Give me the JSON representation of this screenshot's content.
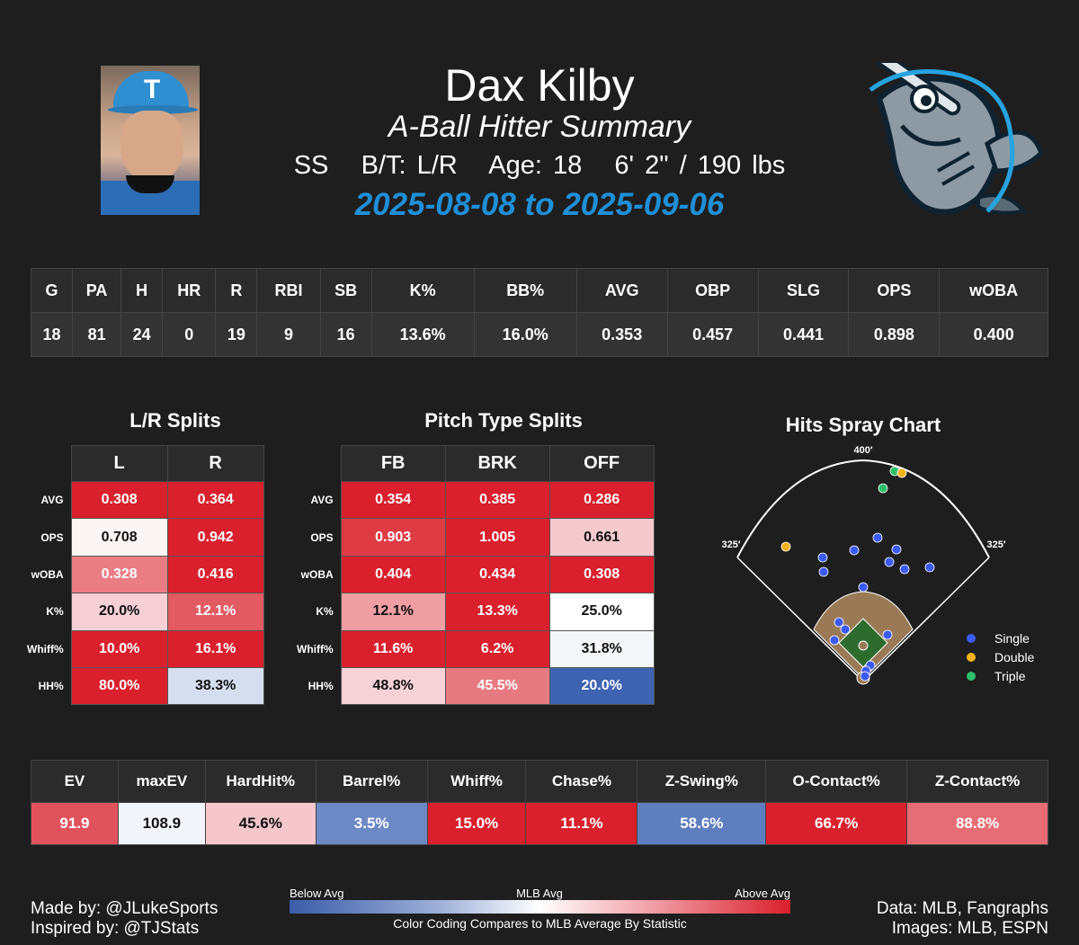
{
  "header": {
    "name": "Dax Kilby",
    "subtitle": "A-Ball Hitter Summary",
    "info": "SS   B/T: L/R   Age: 18   6' 2\" / 190 lbs",
    "dates": "2025-08-08 to 2025-09-06",
    "photo_cap_letter": "T"
  },
  "stats": {
    "headers": [
      "G",
      "PA",
      "H",
      "HR",
      "R",
      "RBI",
      "SB",
      "K%",
      "BB%",
      "AVG",
      "OBP",
      "SLG",
      "OPS",
      "wOBA"
    ],
    "values": [
      "18",
      "81",
      "24",
      "0",
      "19",
      "9",
      "16",
      "13.6%",
      "16.0%",
      "0.353",
      "0.457",
      "0.441",
      "0.898",
      "0.400"
    ]
  },
  "lr_splits": {
    "title": "L/R Splits",
    "columns": [
      "L",
      "R"
    ],
    "row_labels": [
      "AVG",
      "OPS",
      "wOBA",
      "K%",
      "Whiff%",
      "HH%"
    ],
    "rows": [
      [
        "0.308",
        "0.364"
      ],
      [
        "0.708",
        "0.942"
      ],
      [
        "0.328",
        "0.416"
      ],
      [
        "20.0%",
        "12.1%"
      ],
      [
        "10.0%",
        "16.1%"
      ],
      [
        "80.0%",
        "38.3%"
      ]
    ],
    "colors": [
      [
        "#d9202c",
        "#d9202c"
      ],
      [
        "#fcf5f5",
        "#d9202c"
      ],
      [
        "#ea7c83",
        "#d9202c"
      ],
      [
        "#f6d0d4",
        "#e25a62"
      ],
      [
        "#d9202c",
        "#d9202c"
      ],
      [
        "#d9202c",
        "#d4deee"
      ]
    ]
  },
  "pitch_splits": {
    "title": "Pitch Type Splits",
    "columns": [
      "FB",
      "BRK",
      "OFF"
    ],
    "row_labels": [
      "AVG",
      "OPS",
      "wOBA",
      "K%",
      "Whiff%",
      "HH%"
    ],
    "rows": [
      [
        "0.354",
        "0.385",
        "0.286"
      ],
      [
        "0.903",
        "1.005",
        "0.661"
      ],
      [
        "0.404",
        "0.434",
        "0.308"
      ],
      [
        "12.1%",
        "13.3%",
        "25.0%"
      ],
      [
        "11.6%",
        "6.2%",
        "31.8%"
      ],
      [
        "48.8%",
        "45.5%",
        "20.0%"
      ]
    ],
    "colors": [
      [
        "#d9202c",
        "#d9202c",
        "#d9202c"
      ],
      [
        "#de3b44",
        "#d9202c",
        "#f5cace"
      ],
      [
        "#d9202c",
        "#d9202c",
        "#d9202c"
      ],
      [
        "#ef9ea3",
        "#d9202c",
        "#ffffff"
      ],
      [
        "#d9202c",
        "#d9202c",
        "#f4f6fa"
      ],
      [
        "#f6d2d6",
        "#e77a80",
        "#3d63b2"
      ]
    ]
  },
  "spray": {
    "title": "Hits Spray Chart",
    "cf_label": "400′",
    "lf_label": "325′",
    "rf_label": "325′",
    "legend": [
      {
        "label": "Single",
        "color": "#3b5bf0"
      },
      {
        "label": "Double",
        "color": "#f5b21b"
      },
      {
        "label": "Triple",
        "color": "#2fbf6a"
      }
    ]
  },
  "advanced": {
    "headers": [
      "EV",
      "maxEV",
      "HardHit%",
      "Barrel%",
      "Whiff%",
      "Chase%",
      "Z-Swing%",
      "O-Contact%",
      "Z-Contact%"
    ],
    "values": [
      "91.9",
      "108.9",
      "45.6%",
      "3.5%",
      "15.0%",
      "11.1%",
      "58.6%",
      "66.7%",
      "88.8%"
    ],
    "colors": [
      "#e0535d",
      "#f1f4fa",
      "#f5c7cb",
      "#6c88c5",
      "#d9202c",
      "#d9202c",
      "#5e7ec0",
      "#d9202c",
      "#e66d75"
    ]
  },
  "footer": {
    "made_by": "Made by: @JLukeSports",
    "inspired_by": "Inspired by: @TJStats",
    "data_source": "Data: MLB, Fangraphs",
    "image_source": "Images: MLB, ESPN",
    "colorbar_below": "Below Avg",
    "colorbar_mid": "MLB Avg",
    "colorbar_above": "Above Avg",
    "colorbar_note": "Color Coding Compares to MLB Average By Statistic"
  }
}
